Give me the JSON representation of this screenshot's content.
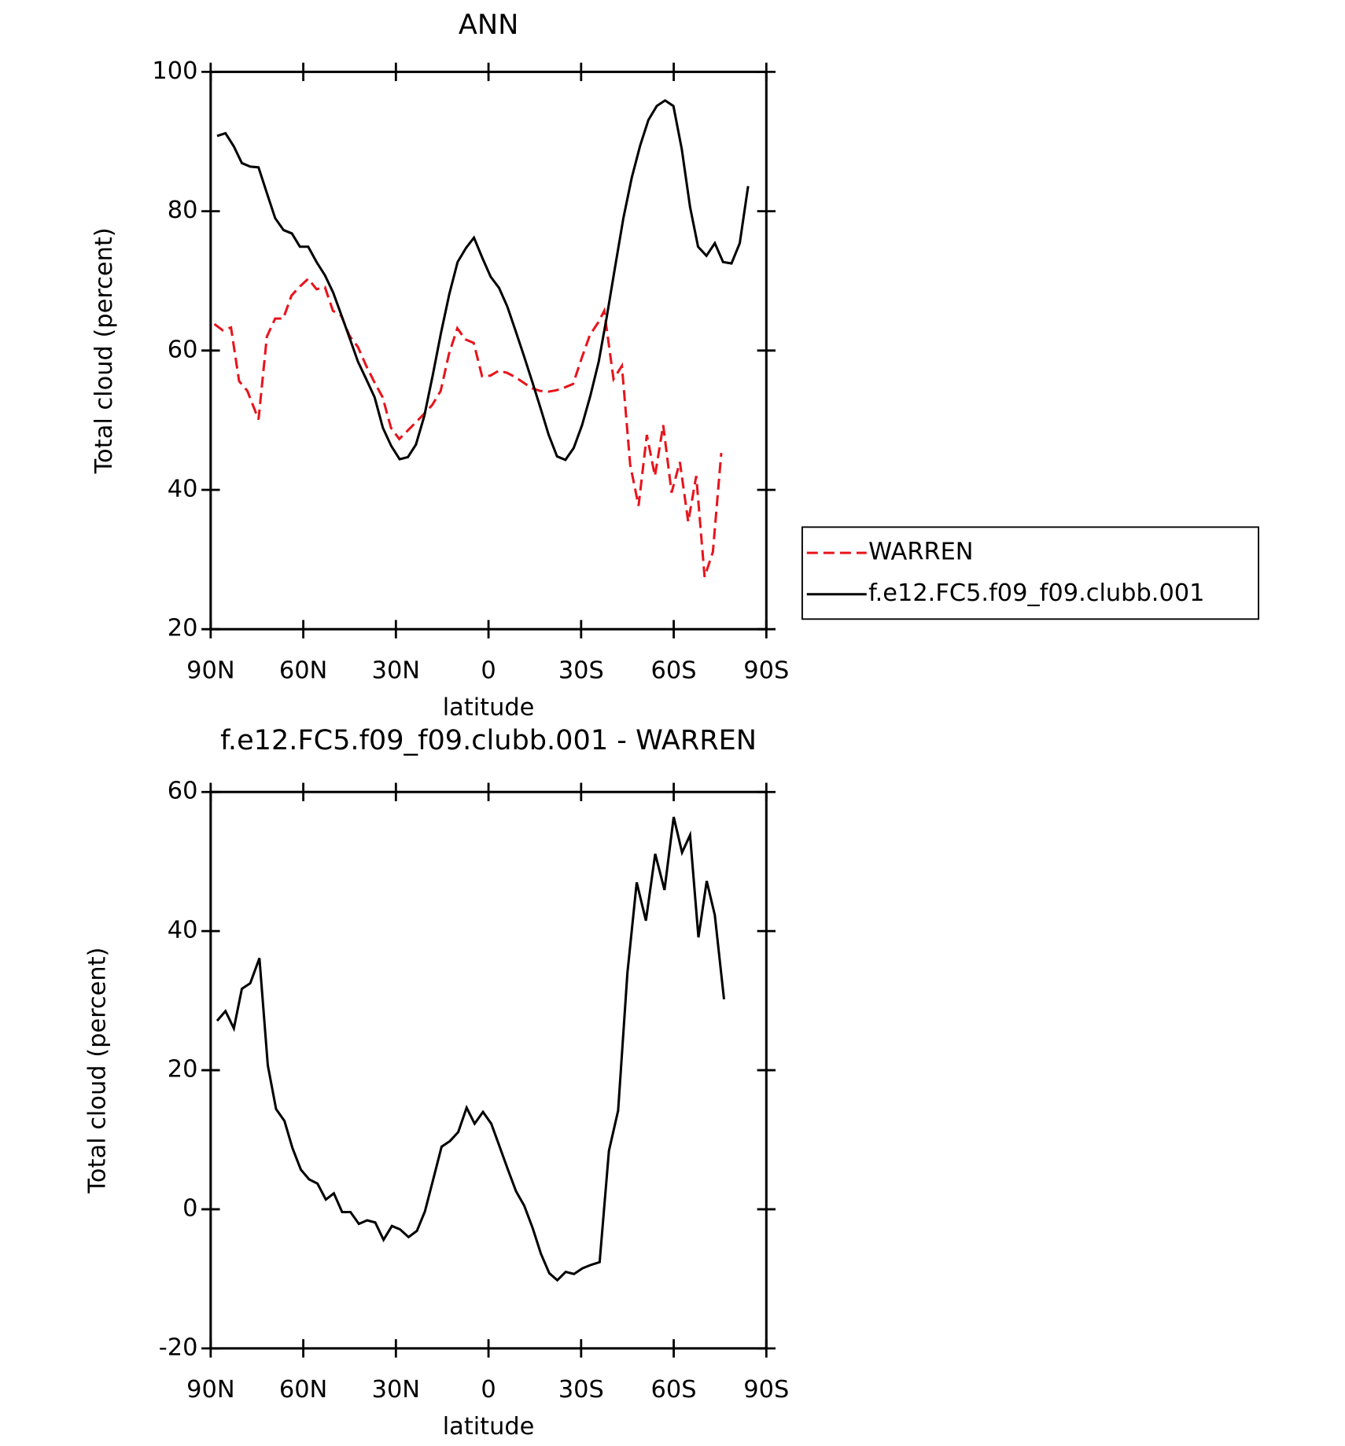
{
  "chart_data": [
    {
      "type": "line",
      "title": "ANN",
      "xlabel": "latitude",
      "ylabel": "Total cloud (percent)",
      "xlim": [
        90,
        -90
      ],
      "xticks": [
        {
          "value": 90,
          "label": "90N"
        },
        {
          "value": 60,
          "label": "60N"
        },
        {
          "value": 30,
          "label": "30N"
        },
        0,
        {
          "value": -30,
          "label": "30S"
        },
        {
          "value": -60,
          "label": "60S"
        },
        {
          "value": -90,
          "label": "90S"
        }
      ],
      "ylim": [
        20,
        100
      ],
      "yticks": [
        20,
        40,
        60,
        80,
        100
      ],
      "legend": "right",
      "series": [
        {
          "name": "WARREN",
          "color": "#e8141c",
          "dashed": true,
          "x": [
            88.8,
            86.1,
            83.4,
            80.8,
            78.1,
            74.5,
            71.8,
            69.1,
            66.5,
            63.8,
            61.1,
            58.4,
            55.7,
            53.0,
            50.4,
            47.7,
            45.0,
            42.3,
            39.6,
            37.0,
            34.3,
            31.6,
            28.9,
            26.2,
            23.5,
            20.9,
            18.2,
            15.5,
            12.8,
            10.1,
            7.5,
            4.8,
            2.1,
            -0.6,
            -3.3,
            -6.0,
            -8.6,
            -11.3,
            -14.0,
            -16.7,
            -19.4,
            -22.0,
            -24.7,
            -27.4,
            -30.1,
            -32.8,
            -35.5,
            -37.5,
            -40.5,
            -43.2,
            -45.9,
            -48.6,
            -51.3,
            -53.9,
            -56.6,
            -59.3,
            -62.0,
            -64.7,
            -67.3,
            -70.0,
            -72.7,
            -75.4
          ],
          "values": [
            63.8,
            62.9,
            63.3,
            55.6,
            54.2,
            50.1,
            62.0,
            64.6,
            64.6,
            67.9,
            69.2,
            70.3,
            68.8,
            69.1,
            65.7,
            65.0,
            62.1,
            60.5,
            57.8,
            55.5,
            53.3,
            48.9,
            47.3,
            48.5,
            49.7,
            50.9,
            52.2,
            54.2,
            59.5,
            63.2,
            61.6,
            61.1,
            56.3,
            56.4,
            57.1,
            56.8,
            56.2,
            55.4,
            54.6,
            54.2,
            54.1,
            54.3,
            54.7,
            55.2,
            58.8,
            62.2,
            64.0,
            65.7,
            55.9,
            57.8,
            43.6,
            37.7,
            47.9,
            42.0,
            49.3,
            39.6,
            44.0,
            35.4,
            42.0,
            27.5,
            31.1,
            45.3
          ]
        },
        {
          "name": "f.e12.FC5.f09_f09.clubb.001",
          "color": "#000000",
          "dashed": false,
          "x": [
            87.9,
            85.2,
            82.5,
            79.9,
            77.2,
            74.5,
            71.8,
            69.1,
            66.4,
            63.7,
            61.1,
            58.4,
            55.7,
            53.0,
            50.3,
            47.6,
            44.9,
            42.3,
            39.6,
            36.9,
            34.2,
            31.5,
            28.8,
            26.1,
            23.5,
            20.8,
            18.1,
            15.4,
            12.7,
            10.0,
            7.3,
            4.7,
            2.0,
            -0.7,
            -3.4,
            -6.1,
            -8.8,
            -11.5,
            -14.2,
            -16.8,
            -19.5,
            -22.2,
            -24.9,
            -27.6,
            -30.3,
            -33.0,
            -35.7,
            -38.3,
            -41.0,
            -43.7,
            -46.4,
            -49.1,
            -51.8,
            -54.5,
            -57.2,
            -59.9,
            -62.6,
            -65.3,
            -67.9,
            -70.6,
            -73.3,
            -76.0,
            -78.7,
            -81.4,
            -84.1
          ],
          "values": [
            90.8,
            91.2,
            89.3,
            86.9,
            86.4,
            86.3,
            82.6,
            79.0,
            77.3,
            76.8,
            74.9,
            74.9,
            72.7,
            70.8,
            68.3,
            65.0,
            61.7,
            58.4,
            55.9,
            53.3,
            48.9,
            46.3,
            44.4,
            44.7,
            46.5,
            50.6,
            56.4,
            62.5,
            68.1,
            72.7,
            74.7,
            76.2,
            73.3,
            70.6,
            69.0,
            66.3,
            62.8,
            59.2,
            55.5,
            51.8,
            47.9,
            44.8,
            44.3,
            46.0,
            49.3,
            53.5,
            58.4,
            64.8,
            72.0,
            79.0,
            84.8,
            89.4,
            93.1,
            95.1,
            95.9,
            95.1,
            88.9,
            80.6,
            74.9,
            73.6,
            75.4,
            72.7,
            72.5,
            75.4,
            83.6
          ]
        }
      ]
    },
    {
      "type": "line",
      "title": "f.e12.FC5.f09_f09.clubb.001 - WARREN",
      "xlabel": "latitude",
      "ylabel": "Total cloud (percent)",
      "xlim": [
        90,
        -90
      ],
      "xticks": [
        {
          "value": 90,
          "label": "90N"
        },
        {
          "value": 60,
          "label": "60N"
        },
        {
          "value": 30,
          "label": "30N"
        },
        0,
        {
          "value": -30,
          "label": "30S"
        },
        {
          "value": -60,
          "label": "60S"
        },
        {
          "value": -90,
          "label": "90S"
        }
      ],
      "ylim": [
        -20,
        60
      ],
      "yticks": [
        -20,
        0,
        20,
        40,
        60
      ],
      "series": [
        {
          "color": "#000000",
          "dashed": false,
          "x": [
            87.9,
            85.2,
            82.5,
            79.9,
            77.2,
            74.2,
            71.5,
            68.8,
            66.1,
            63.5,
            60.8,
            58.1,
            55.4,
            52.7,
            50.1,
            47.4,
            44.7,
            42.0,
            39.3,
            36.7,
            34.0,
            31.3,
            28.6,
            25.9,
            23.2,
            20.6,
            17.9,
            15.2,
            12.5,
            9.8,
            7.1,
            4.5,
            1.8,
            -0.9,
            -3.6,
            -6.3,
            -8.9,
            -11.6,
            -14.3,
            -17.0,
            -19.7,
            -22.3,
            -25.0,
            -27.7,
            -30.4,
            -33.1,
            -36,
            -39,
            -42,
            -45,
            -48,
            -51,
            -54,
            -57,
            -60,
            -62.7,
            -65.3,
            -68,
            -70.7,
            -73.3,
            -76.3
          ],
          "values": [
            27.1,
            28.5,
            26.0,
            31.7,
            32.5,
            36.1,
            20.7,
            14.4,
            12.7,
            8.8,
            5.7,
            4.3,
            3.7,
            1.4,
            2.3,
            -0.4,
            -0.4,
            -2.1,
            -1.6,
            -1.9,
            -4.4,
            -2.4,
            -2.9,
            -4.0,
            -3.1,
            -0.3,
            4.3,
            9.0,
            9.8,
            11.1,
            14.6,
            12.3,
            14.0,
            12.3,
            9.0,
            5.7,
            2.6,
            0.5,
            -2.7,
            -6.4,
            -9.2,
            -10.2,
            -9.0,
            -9.3,
            -8.5,
            -8.0,
            -7.6,
            8.4,
            14.2,
            34.0,
            47.0,
            41.5,
            51.1,
            45.9,
            56.4,
            51.3,
            53.8,
            39.1,
            47.2,
            42.3,
            30.2
          ]
        }
      ]
    }
  ]
}
